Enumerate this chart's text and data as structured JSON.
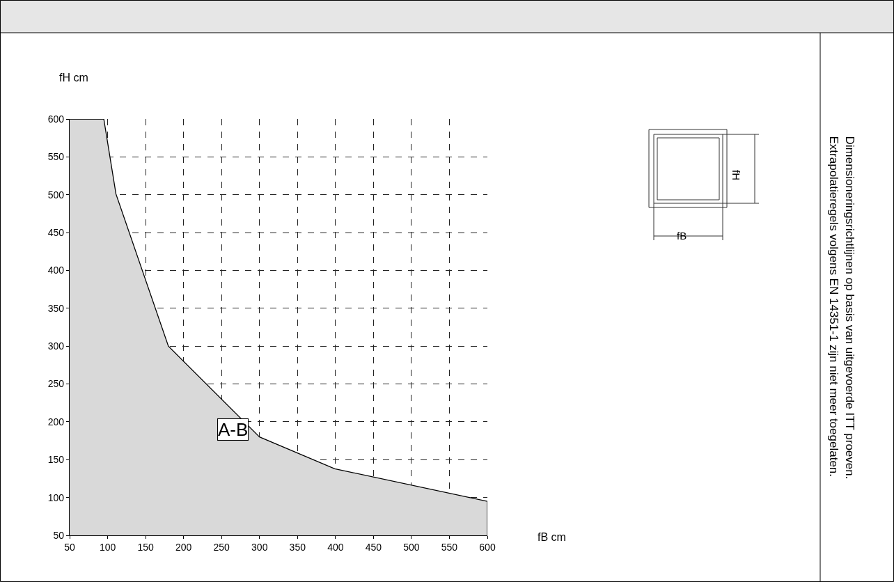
{
  "chart_data": {
    "type": "area",
    "xlabel": "fB cm",
    "ylabel": "fH cm",
    "x": [
      50,
      95,
      111,
      180,
      300,
      399,
      600,
      600
    ],
    "series": [
      {
        "color": "#d9d9d9",
        "values": [
          600,
          600,
          501,
          300,
          180,
          138,
          95,
          50
        ]
      }
    ],
    "xlim": [
      50,
      600
    ],
    "ylim": [
      50,
      600
    ],
    "xticks": [
      50,
      100,
      150,
      200,
      250,
      300,
      350,
      400,
      450,
      500,
      550,
      600
    ],
    "yticks": [
      50,
      100,
      150,
      200,
      250,
      300,
      350,
      400,
      450,
      500,
      550,
      600
    ],
    "grid": true,
    "line_style": "solid",
    "annotations": [
      {
        "text": "A-B",
        "x": 265,
        "y": 190
      },
      "fB",
      "fH",
      "Dimensioneringsrichtlijnen op basis van uitgevoerde ITT proeven.\nExtrapolatieregels volgens EN 14351-1 zijn niet meer toegelaten."
    ]
  }
}
